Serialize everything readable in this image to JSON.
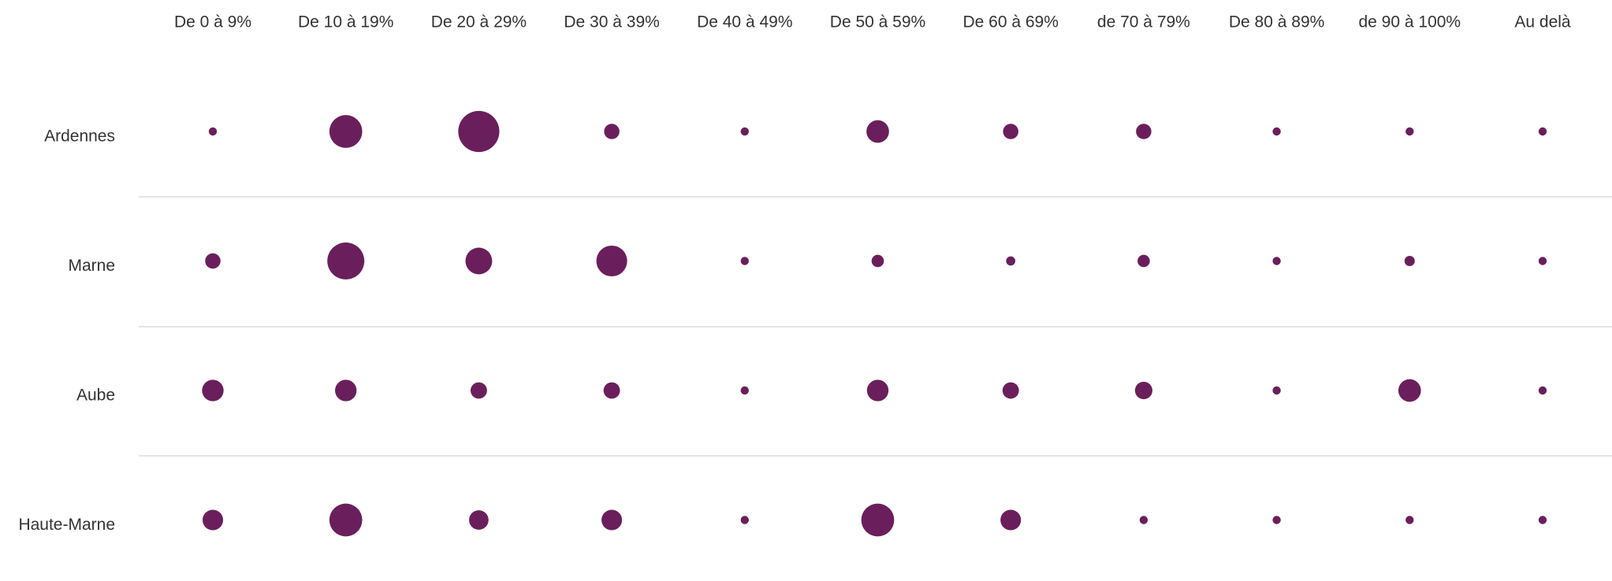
{
  "chart_data": {
    "type": "bubble",
    "categories": [
      "De 0 à 9%",
      "De 10 à 19%",
      "De 20 à 29%",
      "De 30 à 39%",
      "De 40 à 49%",
      "De 50 à 59%",
      "De 60 à 69%",
      "de 70 à 79%",
      "De 80 à 89%",
      "de 90 à 100%",
      "Au delà"
    ],
    "color": "#6a1f5c",
    "series": [
      {
        "name": "Ardennes",
        "values": [
          0,
          256,
          400,
          56,
          0,
          121,
          56,
          56,
          0,
          0,
          0
        ]
      },
      {
        "name": "Marne",
        "values": [
          56,
          324,
          169,
          225,
          0,
          36,
          20,
          36,
          0,
          25,
          0
        ]
      },
      {
        "name": "Aube",
        "values": [
          110,
          110,
          64,
          64,
          0,
          110,
          64,
          72,
          0,
          121,
          0
        ]
      },
      {
        "name": "Haute-Marne",
        "values": [
          100,
          256,
          90,
          100,
          0,
          256,
          100,
          0,
          0,
          0,
          0
        ]
      }
    ]
  }
}
